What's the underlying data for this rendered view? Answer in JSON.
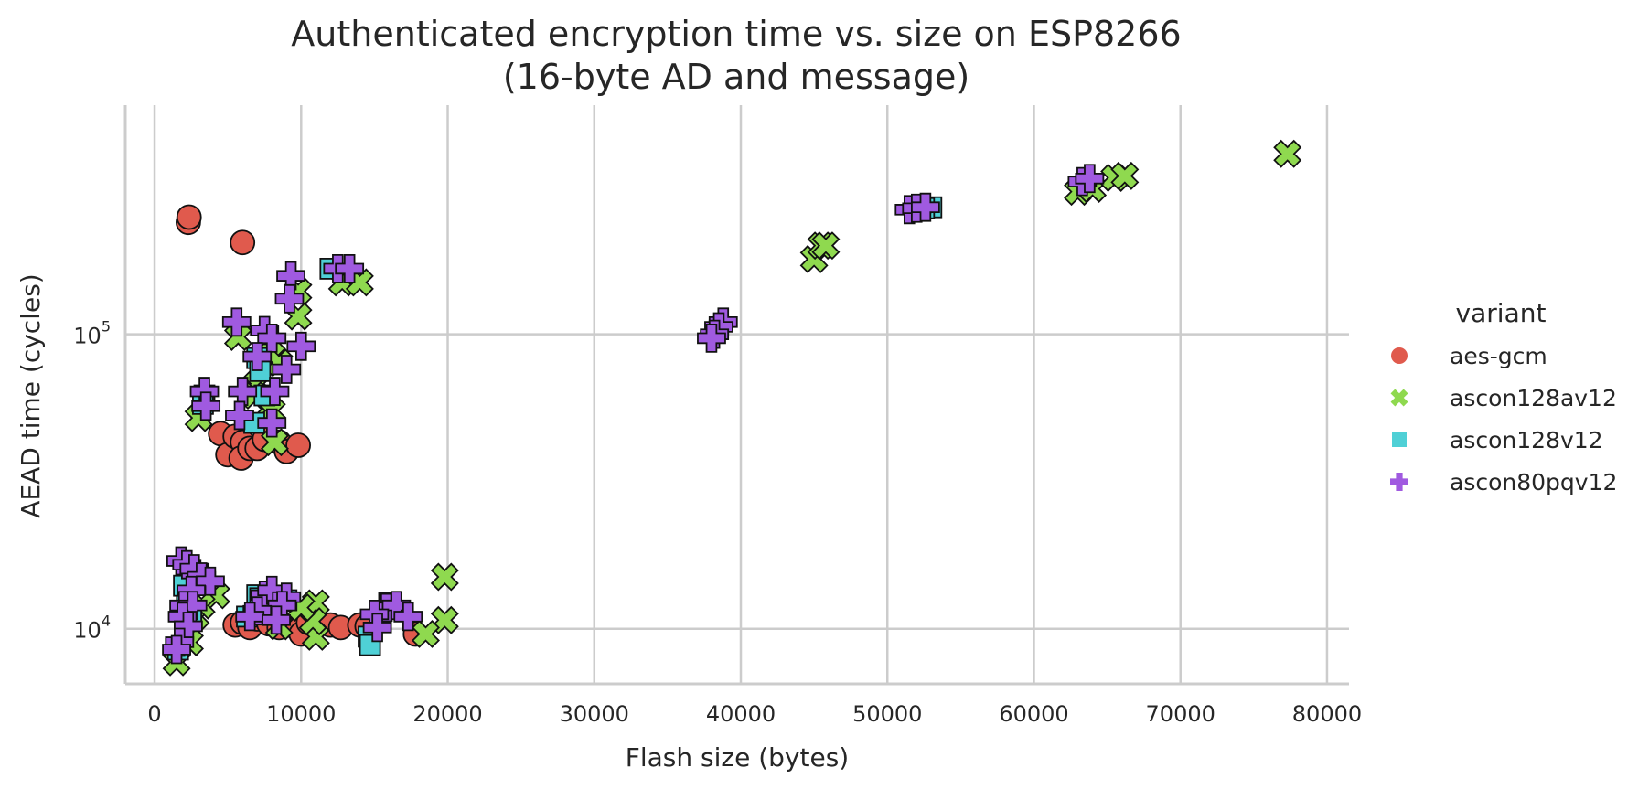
{
  "chart_data": {
    "type": "scatter",
    "title": "Authenticated encryption time vs. size on ESP8266",
    "subtitle": "(16-byte AD and message)",
    "xlabel": "Flash size (bytes)",
    "ylabel": "AEAD time (cycles)",
    "xlim": [
      -2000,
      81500
    ],
    "ylim": [
      6500,
      600000
    ],
    "yscale": "log",
    "xticks": [
      0,
      10000,
      20000,
      30000,
      40000,
      50000,
      60000,
      70000,
      80000
    ],
    "xtick_labels": [
      "0",
      "10000",
      "20000",
      "30000",
      "40000",
      "50000",
      "60000",
      "70000",
      "80000"
    ],
    "yticks": [
      10000,
      100000
    ],
    "ytick_labels": [
      {
        "base": "10",
        "exp": "4"
      },
      {
        "base": "10",
        "exp": "5"
      }
    ],
    "grid": true,
    "legend": {
      "title": "variant",
      "placement": "right"
    },
    "series": [
      {
        "name": "aes-gcm",
        "color": "#e05a4d",
        "marker": "circle",
        "points": [
          [
            2300,
            240000
          ],
          [
            2350,
            250000
          ],
          [
            6000,
            205000
          ],
          [
            4500,
            46000
          ],
          [
            5000,
            39000
          ],
          [
            5500,
            45000
          ],
          [
            6000,
            43000
          ],
          [
            5900,
            38000
          ],
          [
            6500,
            41000
          ],
          [
            7000,
            41000
          ],
          [
            7500,
            44000
          ],
          [
            8500,
            43000
          ],
          [
            9000,
            40000
          ],
          [
            9800,
            42000
          ],
          [
            5500,
            10300
          ],
          [
            6000,
            10500
          ],
          [
            6500,
            10100
          ],
          [
            7000,
            10800
          ],
          [
            7800,
            10400
          ],
          [
            8500,
            10100
          ],
          [
            9500,
            10200
          ],
          [
            10000,
            9600
          ],
          [
            10500,
            10500
          ],
          [
            12000,
            10300
          ],
          [
            12700,
            10100
          ],
          [
            14000,
            10300
          ],
          [
            14500,
            10200
          ],
          [
            17800,
            9600
          ]
        ]
      },
      {
        "name": "ascon128av12",
        "color": "#8fd94f",
        "marker": "x",
        "points": [
          [
            77300,
            410000
          ],
          [
            63000,
            305000
          ],
          [
            64000,
            312000
          ],
          [
            65500,
            340000
          ],
          [
            66200,
            345000
          ],
          [
            45000,
            180000
          ],
          [
            45500,
            200000
          ],
          [
            45800,
            200000
          ],
          [
            12800,
            150000
          ],
          [
            14000,
            150000
          ],
          [
            9800,
            140000
          ],
          [
            9800,
            115000
          ],
          [
            5700,
            98000
          ],
          [
            8000,
            85000
          ],
          [
            8500,
            80000
          ],
          [
            7000,
            68000
          ],
          [
            6800,
            62000
          ],
          [
            3000,
            52000
          ],
          [
            7800,
            56000
          ],
          [
            8000,
            55000
          ],
          [
            8200,
            43000
          ],
          [
            19800,
            15000
          ],
          [
            19800,
            10700
          ],
          [
            18500,
            9600
          ],
          [
            11000,
            12200
          ],
          [
            11000,
            9400
          ],
          [
            10800,
            10600
          ],
          [
            10000,
            11800
          ],
          [
            8500,
            10200
          ],
          [
            7500,
            12500
          ],
          [
            4200,
            13000
          ],
          [
            2700,
            14500
          ],
          [
            2400,
            9000
          ],
          [
            1500,
            7700
          ],
          [
            2800,
            11000
          ],
          [
            3200,
            12000
          ]
        ]
      },
      {
        "name": "ascon128v12",
        "color": "#4fd0d6",
        "marker": "square",
        "points": [
          [
            53000,
            270000
          ],
          [
            52500,
            268000
          ],
          [
            52000,
            265000
          ],
          [
            12000,
            167000
          ],
          [
            7000,
            83000
          ],
          [
            7200,
            75000
          ],
          [
            6800,
            50000
          ],
          [
            7500,
            62000
          ],
          [
            3400,
            62000
          ],
          [
            3300,
            58000
          ],
          [
            14600,
            9400
          ],
          [
            14700,
            8800
          ],
          [
            16000,
            12200
          ],
          [
            15500,
            11500
          ],
          [
            7000,
            13000
          ],
          [
            7200,
            12700
          ],
          [
            6300,
            11000
          ],
          [
            8000,
            11200
          ],
          [
            9000,
            12500
          ],
          [
            2200,
            13000
          ],
          [
            2000,
            14000
          ],
          [
            2500,
            10800
          ],
          [
            1600,
            8500
          ]
        ]
      },
      {
        "name": "ascon80pqv12",
        "color": "#a05ae0",
        "marker": "plus",
        "points": [
          [
            38800,
            110000
          ],
          [
            38500,
            106000
          ],
          [
            38200,
            100000
          ],
          [
            38000,
            97000
          ],
          [
            51500,
            265000
          ],
          [
            52000,
            268000
          ],
          [
            52600,
            270000
          ],
          [
            63300,
            330000
          ],
          [
            63800,
            338000
          ],
          [
            12500,
            167000
          ],
          [
            13300,
            167000
          ],
          [
            9300,
            158000
          ],
          [
            9200,
            132000
          ],
          [
            5600,
            110000
          ],
          [
            7500,
            103000
          ],
          [
            8000,
            97000
          ],
          [
            10000,
            91000
          ],
          [
            9000,
            76000
          ],
          [
            7000,
            84000
          ],
          [
            6000,
            64000
          ],
          [
            8200,
            64000
          ],
          [
            3400,
            64000
          ],
          [
            3500,
            57000
          ],
          [
            5800,
            53000
          ],
          [
            8000,
            50000
          ],
          [
            1800,
            17000
          ],
          [
            2200,
            16500
          ],
          [
            2700,
            16000
          ],
          [
            3200,
            15000
          ],
          [
            3800,
            14500
          ],
          [
            2500,
            13500
          ],
          [
            2000,
            12000
          ],
          [
            2600,
            12000
          ],
          [
            1900,
            11000
          ],
          [
            2300,
            10200
          ],
          [
            1700,
            9000
          ],
          [
            1500,
            8500
          ],
          [
            7500,
            13000
          ],
          [
            8000,
            13500
          ],
          [
            9000,
            12800
          ],
          [
            8700,
            12000
          ],
          [
            7000,
            11500
          ],
          [
            6500,
            11000
          ],
          [
            8300,
            10700
          ],
          [
            15800,
            11800
          ],
          [
            16500,
            12000
          ],
          [
            15000,
            11200
          ],
          [
            17300,
            11000
          ],
          [
            15200,
            10100
          ]
        ]
      }
    ]
  }
}
